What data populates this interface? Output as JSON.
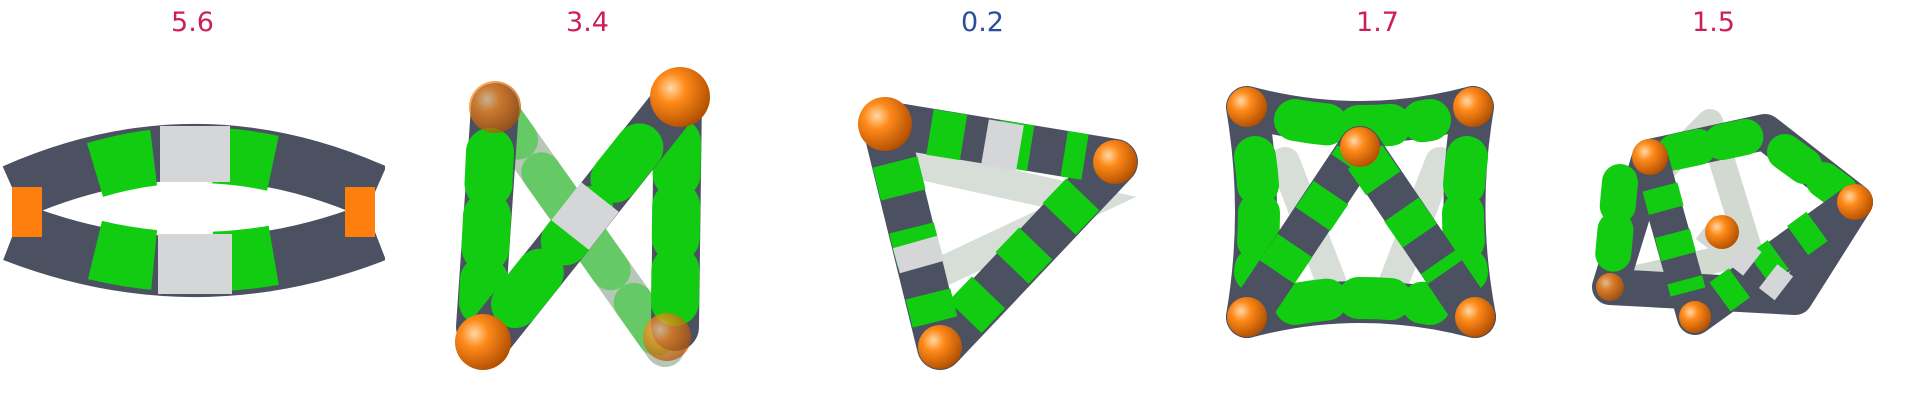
{
  "colors": {
    "label_magenta": "#cc1f5a",
    "label_blue": "#2a4f9a",
    "cap_orange": "#ff7f0e",
    "dark_gray": "#4b5160",
    "light_gray": "#d4d6d8",
    "green": "#11cc11"
  },
  "panels": [
    {
      "label": "5.6",
      "label_color": "#cc1f5a",
      "shape": "flat ring"
    },
    {
      "label": "3.4",
      "label_color": "#cc1f5a",
      "shape": "figure-eight"
    },
    {
      "label": "0.2",
      "label_color": "#2a4f9a",
      "shape": "triangular cage"
    },
    {
      "label": "1.7",
      "label_color": "#cc1f5a",
      "shape": "square cage"
    },
    {
      "label": "1.5",
      "label_color": "#cc1f5a",
      "shape": "pentagonal cage"
    }
  ]
}
